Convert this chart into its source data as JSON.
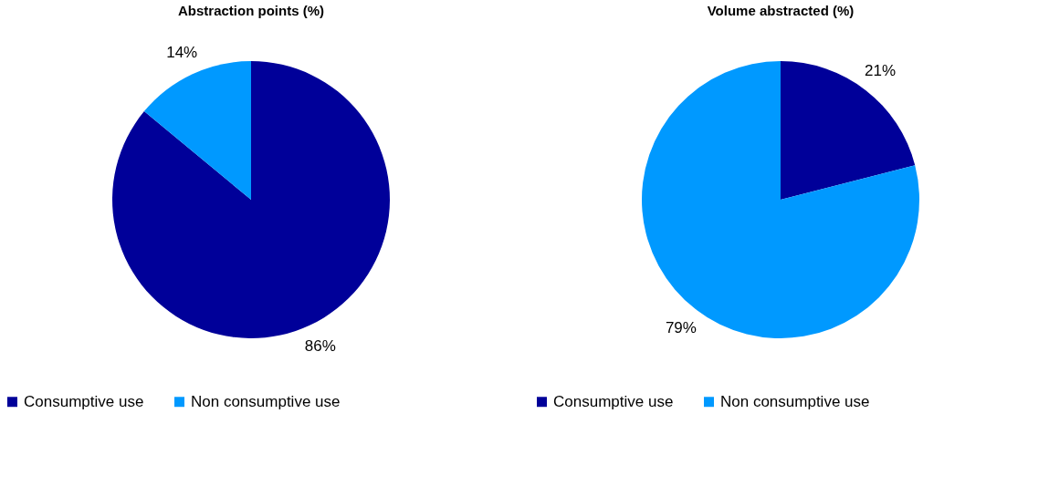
{
  "chart_data": [
    {
      "type": "pie",
      "title": "Abstraction points (%)",
      "categories": [
        "Consumptive use",
        "Non consumptive use"
      ],
      "values": [
        86,
        14
      ],
      "colors": [
        "#000099",
        "#0099ff"
      ],
      "value_labels": [
        "86%",
        "14%"
      ],
      "legend": "bottom"
    },
    {
      "type": "pie",
      "title": "Volume  abstracted  (%)",
      "categories": [
        "Consumptive use",
        "Non consumptive use"
      ],
      "values": [
        21,
        79
      ],
      "colors": [
        "#000099",
        "#0099ff"
      ],
      "value_labels": [
        "21%",
        "79%"
      ],
      "legend": "bottom"
    }
  ]
}
